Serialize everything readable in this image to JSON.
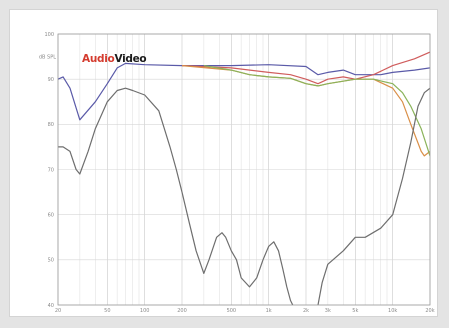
{
  "chart_data": {
    "type": "line",
    "title": "",
    "xlabel": "",
    "ylabel": "",
    "x_scale": "log",
    "xlim": [
      20,
      20000
    ],
    "ylim": [
      40,
      100
    ],
    "grid": true,
    "legend": "none",
    "logo": {
      "part1": "Audio",
      "part2": "Video",
      "color1": "#d43b2e",
      "color2": "#1a1a1a"
    },
    "y_ticks": [
      {
        "value": 100,
        "label": "100"
      },
      {
        "value": 90,
        "label": "90"
      },
      {
        "value": 80,
        "label": "80"
      },
      {
        "value": 70,
        "label": "70"
      },
      {
        "value": 60,
        "label": "60"
      },
      {
        "value": 50,
        "label": "50"
      },
      {
        "value": 40,
        "label": "40"
      }
    ],
    "y_unit": "dB SPL",
    "x_ticks": [
      {
        "value": 20,
        "label": "20"
      },
      {
        "value": 50,
        "label": "50"
      },
      {
        "value": 100,
        "label": "100"
      },
      {
        "value": 200,
        "label": "200"
      },
      {
        "value": 500,
        "label": "500"
      },
      {
        "value": 1000,
        "label": "1k"
      },
      {
        "value": 2000,
        "label": "2k"
      },
      {
        "value": 3000,
        "label": "3k"
      },
      {
        "value": 5000,
        "label": "5k"
      },
      {
        "value": 10000,
        "label": "10k"
      },
      {
        "value": 20000,
        "label": "20k"
      }
    ],
    "series": [
      {
        "color": "#5a5aa8",
        "points": [
          [
            20,
            90
          ],
          [
            22,
            90.5
          ],
          [
            25,
            88
          ],
          [
            30,
            81
          ],
          [
            40,
            85
          ],
          [
            50,
            89
          ],
          [
            60,
            92.5
          ],
          [
            70,
            93.5
          ],
          [
            100,
            93.2
          ],
          [
            200,
            93
          ],
          [
            300,
            93
          ],
          [
            500,
            93
          ],
          [
            1000,
            93.2
          ],
          [
            2000,
            92.8
          ],
          [
            2500,
            91
          ],
          [
            3000,
            91.5
          ],
          [
            4000,
            92
          ],
          [
            5000,
            91
          ],
          [
            8000,
            91
          ],
          [
            10000,
            91.5
          ],
          [
            15000,
            92
          ],
          [
            20000,
            92.5
          ]
        ]
      },
      {
        "color": "#d05c5c",
        "points": [
          [
            200,
            93
          ],
          [
            500,
            92.5
          ],
          [
            1000,
            91.5
          ],
          [
            1500,
            91
          ],
          [
            2000,
            90
          ],
          [
            2500,
            89
          ],
          [
            3000,
            90
          ],
          [
            4000,
            90.5
          ],
          [
            5000,
            90
          ],
          [
            7000,
            91
          ],
          [
            10000,
            93
          ],
          [
            15000,
            94.5
          ],
          [
            20000,
            96
          ]
        ]
      },
      {
        "color": "#d98f47",
        "points": [
          [
            200,
            93
          ],
          [
            500,
            92
          ],
          [
            700,
            91
          ],
          [
            1000,
            90.5
          ],
          [
            1500,
            90.2
          ],
          [
            2000,
            89
          ],
          [
            2500,
            88.5
          ],
          [
            3000,
            89
          ],
          [
            5000,
            90
          ],
          [
            7000,
            90
          ],
          [
            10000,
            88
          ],
          [
            12000,
            85
          ],
          [
            14000,
            80
          ],
          [
            17000,
            74
          ],
          [
            18000,
            73
          ],
          [
            20000,
            74
          ]
        ]
      },
      {
        "color": "#8ab35a",
        "points": [
          [
            300,
            93
          ],
          [
            500,
            92
          ],
          [
            700,
            91
          ],
          [
            1000,
            90.5
          ],
          [
            1500,
            90.2
          ],
          [
            2000,
            89
          ],
          [
            2500,
            88.5
          ],
          [
            3000,
            89
          ],
          [
            5000,
            90
          ],
          [
            7000,
            90
          ],
          [
            10000,
            89
          ],
          [
            12000,
            87
          ],
          [
            14000,
            84
          ],
          [
            17000,
            79
          ],
          [
            20000,
            73
          ]
        ]
      },
      {
        "color": "#6e6e6e",
        "points": [
          [
            20,
            75
          ],
          [
            22,
            75
          ],
          [
            25,
            74
          ],
          [
            28,
            70
          ],
          [
            30,
            69
          ],
          [
            35,
            74
          ],
          [
            40,
            79
          ],
          [
            50,
            85
          ],
          [
            60,
            87.5
          ],
          [
            70,
            88
          ],
          [
            80,
            87.5
          ],
          [
            100,
            86.5
          ],
          [
            130,
            83
          ],
          [
            160,
            75
          ],
          [
            180,
            70
          ],
          [
            200,
            65
          ],
          [
            230,
            58
          ],
          [
            260,
            52
          ],
          [
            300,
            47
          ],
          [
            330,
            50
          ],
          [
            380,
            55
          ],
          [
            420,
            56
          ],
          [
            450,
            55
          ],
          [
            500,
            52
          ],
          [
            550,
            50
          ],
          [
            600,
            46
          ],
          [
            700,
            44
          ],
          [
            800,
            46
          ],
          [
            900,
            50
          ],
          [
            1000,
            53
          ],
          [
            1100,
            54
          ],
          [
            1200,
            52
          ],
          [
            1300,
            48
          ],
          [
            1400,
            44
          ],
          [
            1500,
            41
          ],
          [
            1700,
            38
          ],
          [
            2000,
            34
          ],
          [
            2300,
            36
          ],
          [
            2500,
            40
          ],
          [
            2700,
            45
          ],
          [
            3000,
            49
          ],
          [
            4000,
            52
          ],
          [
            5000,
            55
          ],
          [
            6000,
            55
          ],
          [
            8000,
            57
          ],
          [
            10000,
            60
          ],
          [
            12000,
            68
          ],
          [
            14000,
            76
          ],
          [
            16000,
            84
          ],
          [
            18000,
            87
          ],
          [
            20000,
            88
          ]
        ]
      }
    ]
  }
}
